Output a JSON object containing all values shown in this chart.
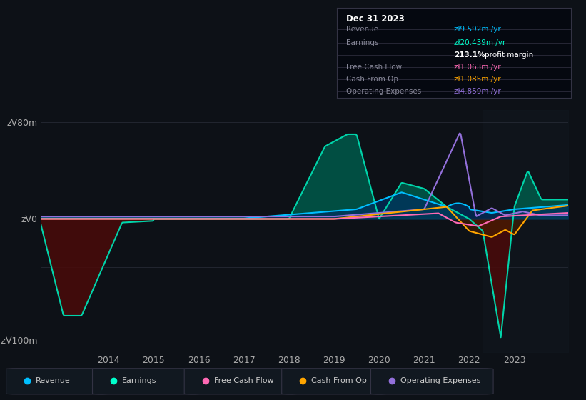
{
  "bg_color": "#0d1117",
  "plot_bg_color": "#0d1117",
  "grid_color": "#2a2f3a",
  "table": {
    "date": "Dec 31 2023",
    "rows": [
      {
        "label": "Revenue",
        "value": "zᐯ9.592m /yr",
        "value_color": "#00bfff"
      },
      {
        "label": "Earnings",
        "value": "zᐯ20.439m /yr",
        "value_color": "#00ffcc"
      },
      {
        "label": "",
        "value1": "213.1%",
        "value2": " profit margin",
        "value_color": "#ffffff"
      },
      {
        "label": "Free Cash Flow",
        "value": "zᐯ1.063m /yr",
        "value_color": "#ff69b4"
      },
      {
        "label": "Cash From Op",
        "value": "zᐯ1.085m /yr",
        "value_color": "#ffa500"
      },
      {
        "label": "Operating Expenses",
        "value": "zᐯ4.859m /yr",
        "value_color": "#9370db"
      }
    ]
  },
  "y_labels": [
    "zᐯ80m",
    "zᐯ0",
    "-zᐯ100m"
  ],
  "y_ticks": [
    80,
    0,
    -100
  ],
  "x_labels": [
    "2014",
    "2015",
    "2016",
    "2017",
    "2018",
    "2019",
    "2020",
    "2021",
    "2022",
    "2023"
  ],
  "x_ticks": [
    2014,
    2015,
    2016,
    2017,
    2018,
    2019,
    2020,
    2021,
    2022,
    2023
  ],
  "legend": [
    {
      "label": "Revenue",
      "color": "#00bfff"
    },
    {
      "label": "Earnings",
      "color": "#00ffcc"
    },
    {
      "label": "Free Cash Flow",
      "color": "#ff69b4"
    },
    {
      "label": "Cash From Op",
      "color": "#ffa500"
    },
    {
      "label": "Operating Expenses",
      "color": "#9370db"
    }
  ],
  "colors": {
    "revenue_line": "#00bfff",
    "revenue_fill": "#003060",
    "earnings_line": "#00d4aa",
    "earnings_fill_pos": "#005a4a",
    "earnings_fill_neg": "#4a0a0a",
    "opex_line": "#9370db",
    "cash_line": "#ffa500",
    "cash_fill_neg": "#4a2000",
    "fcf_line": "#ff69b4",
    "zero_line": "#555566",
    "dark_overlay": "#111820",
    "grid": "#2a2f3a"
  }
}
